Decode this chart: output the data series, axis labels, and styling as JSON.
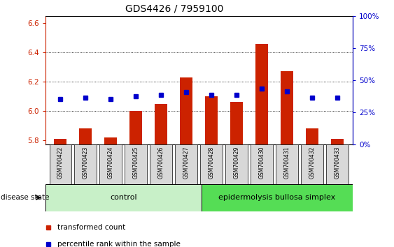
{
  "title": "GDS4426 / 7959100",
  "samples": [
    "GSM700422",
    "GSM700423",
    "GSM700424",
    "GSM700425",
    "GSM700426",
    "GSM700427",
    "GSM700428",
    "GSM700429",
    "GSM700430",
    "GSM700431",
    "GSM700432",
    "GSM700433"
  ],
  "bar_values": [
    5.81,
    5.88,
    5.82,
    6.0,
    6.05,
    6.23,
    6.1,
    6.06,
    6.46,
    6.27,
    5.88,
    5.81
  ],
  "bar_base": 5.77,
  "percentile_values": [
    6.08,
    6.09,
    6.08,
    6.1,
    6.11,
    6.13,
    6.11,
    6.11,
    6.155,
    6.135,
    6.09,
    6.09
  ],
  "ylim_left": [
    5.77,
    6.65
  ],
  "yticks_left": [
    5.8,
    6.0,
    6.2,
    6.4,
    6.6
  ],
  "yticks_right": [
    0,
    25,
    50,
    75,
    100
  ],
  "bar_color": "#cc2200",
  "percentile_color": "#0000cc",
  "control_samples": 6,
  "control_label": "control",
  "disease_label": "epidermolysis bullosa simplex",
  "disease_state_label": "disease state",
  "legend_bar_label": "transformed count",
  "legend_pct_label": "percentile rank within the sample",
  "control_bg": "#c8f0c8",
  "disease_bg": "#55dd55",
  "sample_box_bg": "#d8d8d8",
  "title_fontsize": 10,
  "tick_fontsize": 7.5,
  "label_fontsize": 8
}
